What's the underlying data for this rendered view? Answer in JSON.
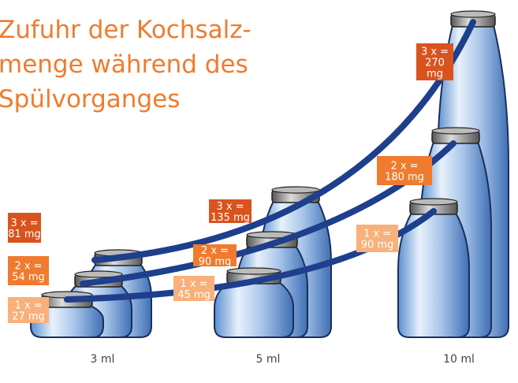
{
  "title": {
    "lines": [
      "Zufuhr der Kochsalz-",
      "menge während des",
      "Spülvorganges"
    ]
  },
  "volumes": [
    "3 ml",
    "5 ml",
    "10 ml"
  ],
  "callouts": [
    {
      "lines": [
        "3 x =",
        "81 mg"
      ]
    },
    {
      "lines": [
        "2 x =",
        "54 mg"
      ]
    },
    {
      "lines": [
        "1 x =",
        "27 mg"
      ]
    },
    {
      "lines": [
        "3 x =",
        "135 mg"
      ]
    },
    {
      "lines": [
        "2 x =",
        "90 mg"
      ]
    },
    {
      "lines": [
        "1 x =",
        "45 mg"
      ]
    },
    {
      "lines": [
        "3 x =",
        "270",
        "mg"
      ]
    },
    {
      "lines": [
        "2 x =",
        "180 mg"
      ]
    },
    {
      "lines": [
        "1 x =",
        "90 mg"
      ]
    }
  ]
}
